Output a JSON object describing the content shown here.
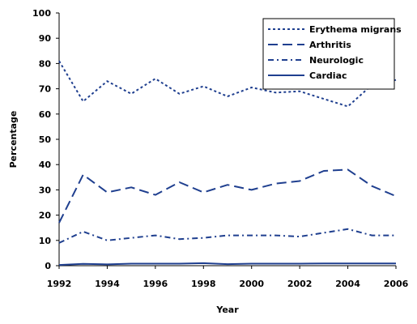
{
  "chart_data": {
    "type": "line",
    "title": "",
    "xlabel": "Year",
    "ylabel": "Percentage",
    "xlim": [
      1992,
      2006
    ],
    "ylim": [
      0,
      100
    ],
    "x_ticks": [
      1992,
      1994,
      1996,
      1998,
      2000,
      2002,
      2004,
      2006
    ],
    "y_ticks": [
      0,
      10,
      20,
      30,
      40,
      50,
      60,
      70,
      80,
      90,
      100
    ],
    "grid": false,
    "legend_position": "top-right",
    "x": [
      1992,
      1993,
      1994,
      1995,
      1996,
      1997,
      1998,
      1999,
      2000,
      2001,
      2002,
      2003,
      2004,
      2005,
      2006
    ],
    "series": [
      {
        "name": "Erythema migrans",
        "dash": "dotted",
        "color": "#1f3f8f",
        "values": [
          81,
          65,
          73,
          68,
          74,
          68,
          71,
          67,
          70.5,
          68.5,
          69,
          66,
          63,
          71.5,
          73.5
        ]
      },
      {
        "name": "Arthritis",
        "dash": "long-dash",
        "color": "#1f3f8f",
        "values": [
          17,
          36,
          29,
          31,
          28,
          33,
          29,
          32,
          30,
          32.5,
          33.5,
          37.5,
          38,
          31.5,
          27.5
        ]
      },
      {
        "name": "Neurologic",
        "dash": "dash-dot",
        "color": "#1f3f8f",
        "values": [
          9,
          13.5,
          10,
          11,
          12,
          10.5,
          11,
          12,
          12,
          12,
          11.5,
          13,
          14.5,
          12,
          12
        ]
      },
      {
        "name": "Cardiac",
        "dash": "solid",
        "color": "#1f3f8f",
        "values": [
          0.3,
          0.7,
          0.5,
          0.8,
          0.8,
          0.8,
          1.0,
          0.6,
          0.8,
          0.8,
          0.8,
          0.9,
          0.9,
          0.9,
          0.9
        ]
      }
    ]
  }
}
